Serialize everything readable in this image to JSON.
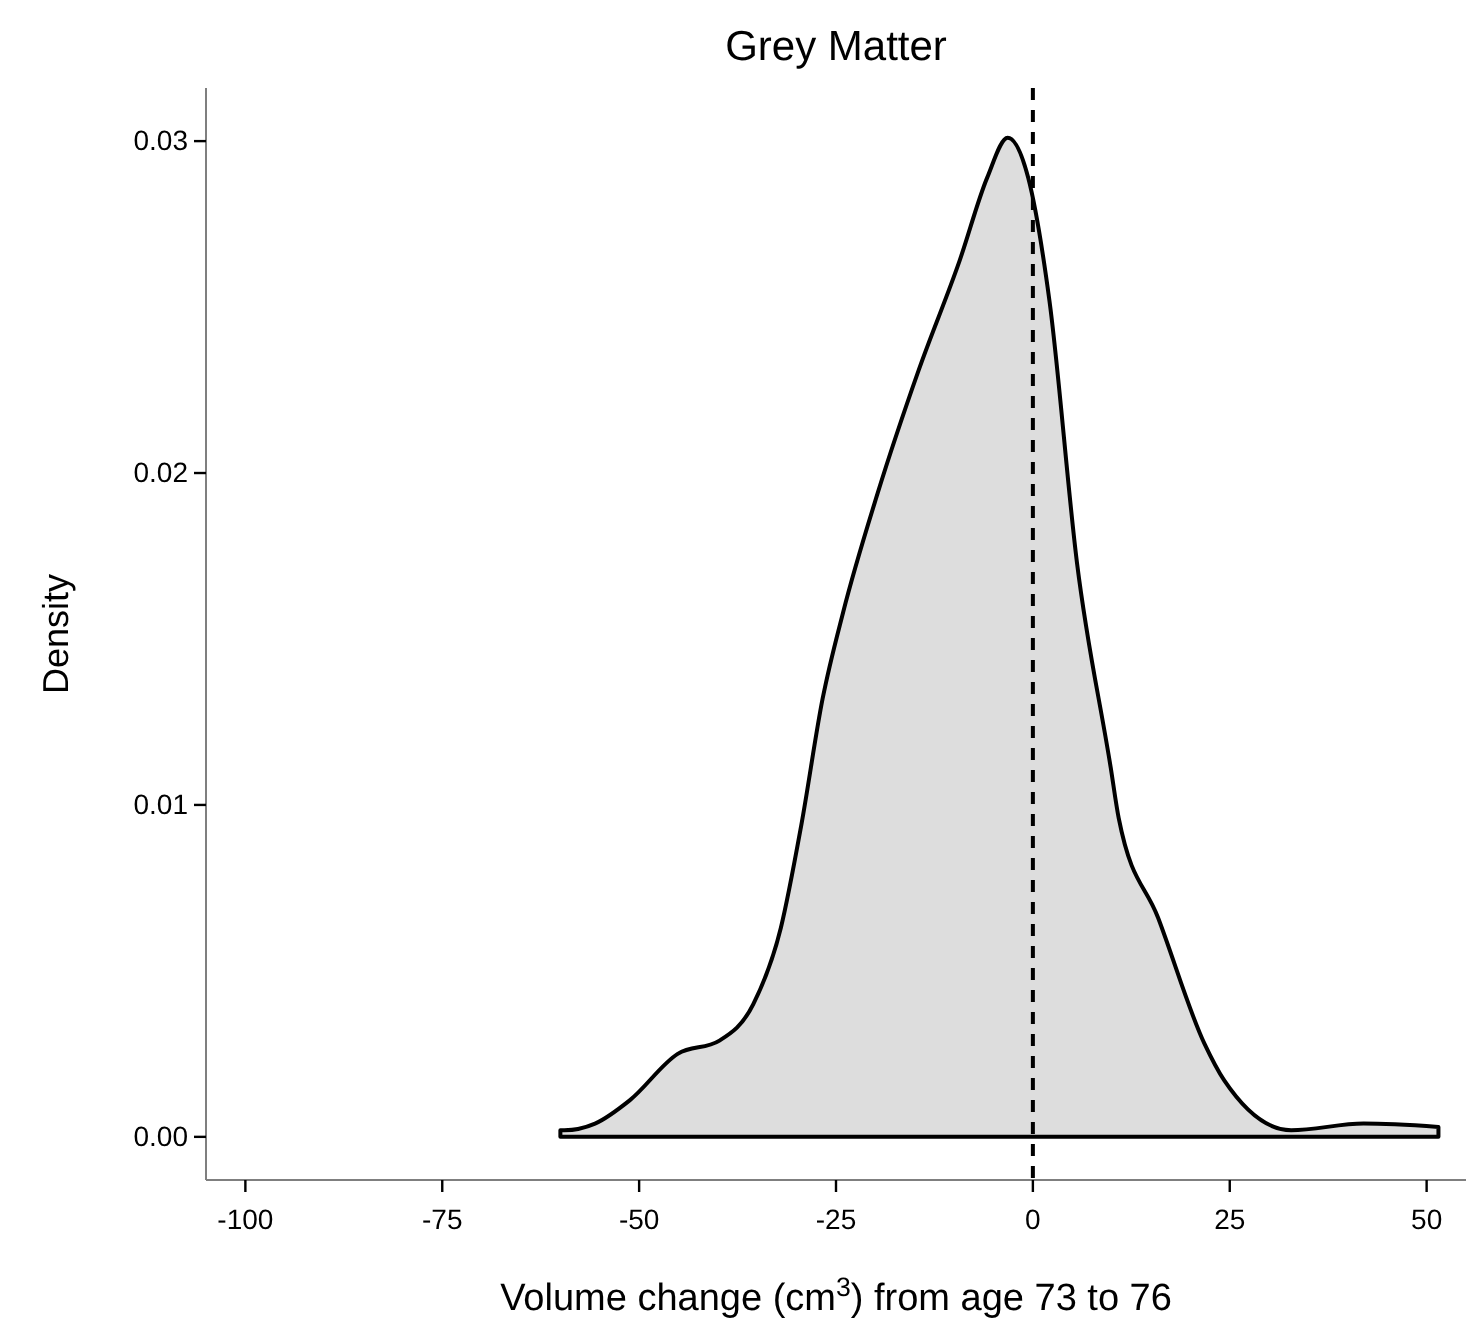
{
  "chart_data": {
    "type": "area",
    "title": "Grey Matter",
    "xlabel": "Volume change (cm$^{3}$) from age 73 to 76",
    "ylabel": "Density",
    "x": [
      -60,
      -59.5,
      -55.6,
      -51.2,
      -45.1,
      -39.8,
      -35.5,
      -32.0,
      -29.4,
      -26.7,
      -24.1,
      -19.7,
      -14.5,
      -9.3,
      -5.8,
      -3.2,
      -0.6,
      2.1,
      5.6,
      9.9,
      10.9,
      15.9,
      21.8,
      24.3,
      32.8,
      42.0,
      51.5
    ],
    "series": [
      {
        "color": "#dddddd",
        "values": [
          0.0002,
          0.0002,
          0.0004,
          0.0011,
          0.0025,
          0.0029,
          0.004,
          0.0063,
          0.0094,
          0.0132,
          0.0158,
          0.0194,
          0.0231,
          0.0264,
          0.0289,
          0.0301,
          0.0289,
          0.0252,
          0.0173,
          0.0111,
          0.0096,
          0.0066,
          0.0028,
          0.0017,
          0.0002,
          0.0004,
          0.0003
        ]
      }
    ],
    "xlim": [
      -105,
      55
    ],
    "ylim": [
      -0.0013,
      0.0316
    ],
    "xticks": [
      -100,
      -75,
      -50,
      -25,
      0,
      25,
      50
    ],
    "yticks": [
      {
        "value": 0,
        "label": "0.00"
      },
      {
        "value": 0.01,
        "label": "0.01"
      },
      {
        "value": 0.02,
        "label": "0.02"
      },
      {
        "value": 0.03,
        "label": "0.03"
      }
    ],
    "ref_lines": [
      {
        "axis": "x",
        "value": 0,
        "line_style": "dashed",
        "color": "#000000"
      }
    ],
    "grid": false
  }
}
